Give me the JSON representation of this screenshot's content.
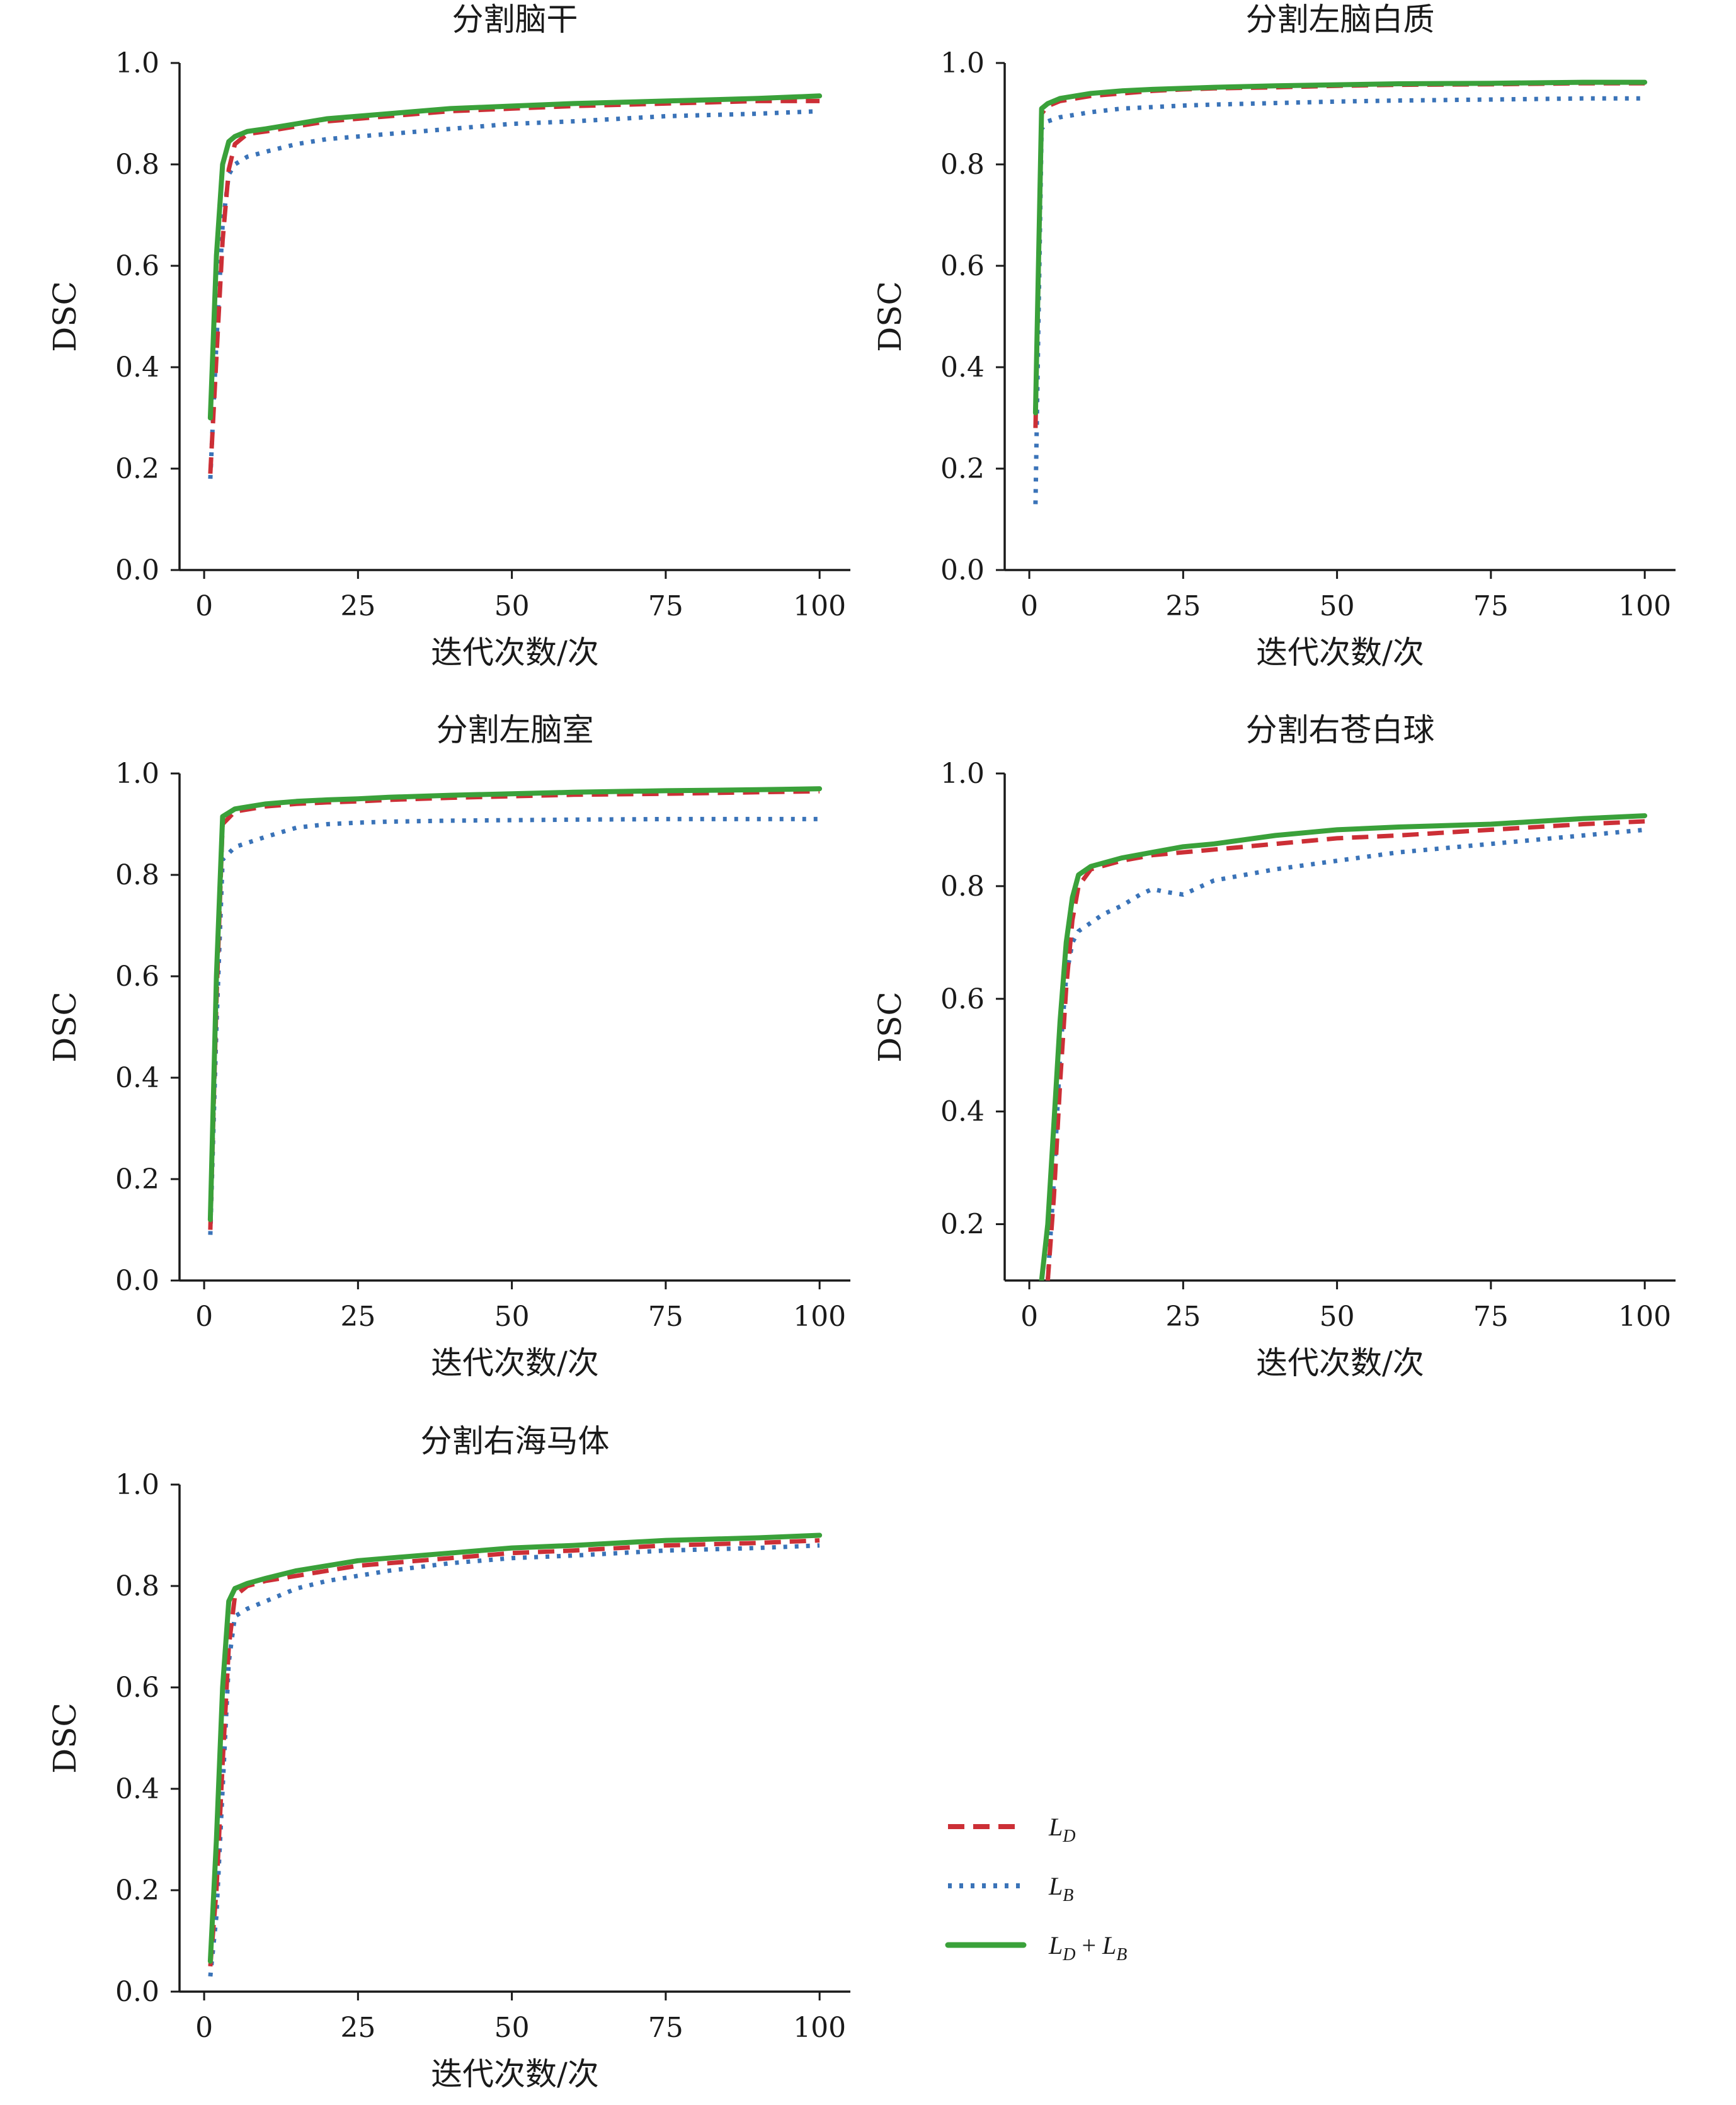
{
  "legend": {
    "entries": [
      {
        "series": "LD",
        "main": "L",
        "sub": "D",
        "color": "#cc2f36",
        "style": "dashed"
      },
      {
        "series": "LB",
        "main": "L",
        "sub": "B",
        "color": "#3a73b8",
        "style": "dotted"
      },
      {
        "series": "LD+LB",
        "main": "L",
        "sub": "D",
        "plus": " + ",
        "main2": "L",
        "sub2": "B",
        "color": "#3aa13a",
        "style": "solid"
      }
    ]
  },
  "chart_data": [
    {
      "type": "line",
      "title": "分割脑干",
      "xlabel": "迭代次数/次",
      "ylabel": "DSC",
      "xlim": [
        -4,
        105
      ],
      "ylim": [
        0.0,
        1.0
      ],
      "xticks": [
        0,
        25,
        50,
        75,
        100
      ],
      "yticks": [
        0.0,
        0.2,
        0.4,
        0.6,
        0.8,
        1.0
      ],
      "series": [
        {
          "name": "LD",
          "x": [
            1,
            2,
            3,
            4,
            5,
            7,
            10,
            15,
            20,
            25,
            30,
            40,
            50,
            60,
            75,
            90,
            100
          ],
          "y": [
            0.19,
            0.42,
            0.65,
            0.79,
            0.84,
            0.86,
            0.865,
            0.875,
            0.885,
            0.89,
            0.895,
            0.905,
            0.91,
            0.915,
            0.92,
            0.925,
            0.925
          ]
        },
        {
          "name": "LB",
          "x": [
            1,
            2,
            3,
            4,
            5,
            7,
            10,
            15,
            20,
            25,
            30,
            40,
            50,
            60,
            75,
            90,
            100
          ],
          "y": [
            0.18,
            0.45,
            0.68,
            0.78,
            0.8,
            0.815,
            0.825,
            0.84,
            0.85,
            0.855,
            0.86,
            0.87,
            0.88,
            0.885,
            0.895,
            0.9,
            0.905
          ]
        },
        {
          "name": "LD+LB",
          "x": [
            1,
            2,
            3,
            4,
            5,
            7,
            10,
            15,
            20,
            25,
            30,
            40,
            50,
            60,
            75,
            90,
            100
          ],
          "y": [
            0.3,
            0.62,
            0.8,
            0.845,
            0.855,
            0.865,
            0.87,
            0.88,
            0.89,
            0.895,
            0.9,
            0.91,
            0.915,
            0.92,
            0.925,
            0.93,
            0.935
          ]
        }
      ]
    },
    {
      "type": "line",
      "title": "分割左脑白质",
      "xlabel": "迭代次数/次",
      "ylabel": "DSC",
      "xlim": [
        -4,
        105
      ],
      "ylim": [
        0.0,
        1.0
      ],
      "xticks": [
        0,
        25,
        50,
        75,
        100
      ],
      "yticks": [
        0.0,
        0.2,
        0.4,
        0.6,
        0.8,
        1.0
      ],
      "series": [
        {
          "name": "LD",
          "x": [
            1,
            2,
            3,
            5,
            10,
            15,
            20,
            25,
            30,
            40,
            50,
            60,
            75,
            90,
            100
          ],
          "y": [
            0.28,
            0.9,
            0.915,
            0.925,
            0.935,
            0.94,
            0.945,
            0.948,
            0.95,
            0.952,
            0.955,
            0.957,
            0.958,
            0.96,
            0.96
          ]
        },
        {
          "name": "LB",
          "x": [
            1,
            2,
            3,
            5,
            10,
            15,
            20,
            25,
            30,
            40,
            50,
            60,
            75,
            90,
            100
          ],
          "y": [
            0.13,
            0.87,
            0.885,
            0.893,
            0.903,
            0.91,
            0.913,
            0.916,
            0.918,
            0.921,
            0.924,
            0.926,
            0.928,
            0.93,
            0.93
          ]
        },
        {
          "name": "LD+LB",
          "x": [
            1,
            2,
            3,
            5,
            10,
            15,
            20,
            25,
            30,
            40,
            50,
            60,
            75,
            90,
            100
          ],
          "y": [
            0.31,
            0.91,
            0.92,
            0.93,
            0.94,
            0.945,
            0.948,
            0.95,
            0.952,
            0.955,
            0.957,
            0.959,
            0.96,
            0.962,
            0.962
          ]
        }
      ]
    },
    {
      "type": "line",
      "title": "分割左脑室",
      "xlabel": "迭代次数/次",
      "ylabel": "DSC",
      "xlim": [
        -4,
        105
      ],
      "ylim": [
        0.0,
        1.0
      ],
      "xticks": [
        0,
        25,
        50,
        75,
        100
      ],
      "yticks": [
        0.0,
        0.2,
        0.4,
        0.6,
        0.8,
        1.0
      ],
      "series": [
        {
          "name": "LD",
          "x": [
            1,
            2,
            3,
            5,
            10,
            15,
            20,
            25,
            30,
            40,
            50,
            60,
            75,
            90,
            100
          ],
          "y": [
            0.1,
            0.55,
            0.9,
            0.925,
            0.935,
            0.94,
            0.943,
            0.945,
            0.948,
            0.952,
            0.955,
            0.958,
            0.96,
            0.963,
            0.965
          ]
        },
        {
          "name": "LB",
          "x": [
            1,
            2,
            3,
            5,
            10,
            15,
            20,
            25,
            30,
            40,
            50,
            60,
            75,
            90,
            100
          ],
          "y": [
            0.09,
            0.5,
            0.83,
            0.855,
            0.875,
            0.893,
            0.9,
            0.903,
            0.905,
            0.907,
            0.908,
            0.909,
            0.91,
            0.91,
            0.91
          ]
        },
        {
          "name": "LD+LB",
          "x": [
            1,
            2,
            3,
            5,
            10,
            15,
            20,
            25,
            30,
            40,
            50,
            60,
            75,
            90,
            100
          ],
          "y": [
            0.12,
            0.6,
            0.915,
            0.93,
            0.94,
            0.945,
            0.948,
            0.95,
            0.953,
            0.957,
            0.96,
            0.963,
            0.966,
            0.968,
            0.97
          ]
        }
      ]
    },
    {
      "type": "line",
      "title": "分割右苍白球",
      "xlabel": "迭代次数/次",
      "ylabel": "DSC",
      "xlim": [
        -4,
        105
      ],
      "ylim": [
        0.1,
        1.0
      ],
      "xticks": [
        0,
        25,
        50,
        75,
        100
      ],
      "yticks": [
        0.2,
        0.4,
        0.6,
        0.8,
        1.0
      ],
      "series": [
        {
          "name": "LD",
          "x": [
            3,
            4,
            5,
            6,
            7,
            8,
            10,
            15,
            20,
            25,
            30,
            40,
            50,
            60,
            75,
            90,
            100
          ],
          "y": [
            0.1,
            0.25,
            0.45,
            0.62,
            0.74,
            0.8,
            0.83,
            0.845,
            0.855,
            0.86,
            0.865,
            0.875,
            0.885,
            0.89,
            0.9,
            0.91,
            0.915
          ]
        },
        {
          "name": "LB",
          "x": [
            3,
            4,
            5,
            6,
            7,
            8,
            10,
            12,
            15,
            18,
            20,
            22,
            25,
            30,
            40,
            50,
            60,
            75,
            90,
            100
          ],
          "y": [
            0.1,
            0.28,
            0.5,
            0.64,
            0.7,
            0.72,
            0.735,
            0.75,
            0.765,
            0.785,
            0.795,
            0.79,
            0.785,
            0.81,
            0.83,
            0.845,
            0.86,
            0.875,
            0.89,
            0.9
          ]
        },
        {
          "name": "LD+LB",
          "x": [
            2,
            3,
            4,
            5,
            6,
            7,
            8,
            10,
            15,
            20,
            25,
            30,
            40,
            50,
            60,
            75,
            90,
            100
          ],
          "y": [
            0.1,
            0.2,
            0.38,
            0.56,
            0.7,
            0.78,
            0.82,
            0.835,
            0.85,
            0.86,
            0.87,
            0.875,
            0.89,
            0.9,
            0.905,
            0.91,
            0.92,
            0.925
          ]
        }
      ]
    },
    {
      "type": "line",
      "title": "分割右海马体",
      "xlabel": "迭代次数/次",
      "ylabel": "DSC",
      "xlim": [
        -4,
        105
      ],
      "ylim": [
        0.0,
        1.0
      ],
      "xticks": [
        0,
        25,
        50,
        75,
        100
      ],
      "yticks": [
        0.0,
        0.2,
        0.4,
        0.6,
        0.8,
        1.0
      ],
      "series": [
        {
          "name": "LD",
          "x": [
            1,
            2,
            3,
            4,
            5,
            7,
            10,
            15,
            20,
            25,
            30,
            40,
            50,
            60,
            75,
            90,
            100
          ],
          "y": [
            0.05,
            0.2,
            0.45,
            0.68,
            0.78,
            0.8,
            0.81,
            0.82,
            0.83,
            0.84,
            0.845,
            0.855,
            0.865,
            0.87,
            0.88,
            0.885,
            0.89
          ]
        },
        {
          "name": "LB",
          "x": [
            1,
            2,
            3,
            4,
            5,
            7,
            10,
            15,
            20,
            25,
            30,
            40,
            50,
            60,
            75,
            90,
            100
          ],
          "y": [
            0.03,
            0.15,
            0.4,
            0.65,
            0.74,
            0.755,
            0.77,
            0.795,
            0.81,
            0.82,
            0.83,
            0.845,
            0.855,
            0.86,
            0.87,
            0.875,
            0.88
          ]
        },
        {
          "name": "LD+LB",
          "x": [
            1,
            2,
            3,
            4,
            5,
            7,
            10,
            15,
            20,
            25,
            30,
            40,
            50,
            60,
            75,
            90,
            100
          ],
          "y": [
            0.06,
            0.3,
            0.6,
            0.77,
            0.795,
            0.805,
            0.815,
            0.83,
            0.84,
            0.85,
            0.855,
            0.865,
            0.875,
            0.88,
            0.89,
            0.895,
            0.9
          ]
        }
      ]
    }
  ]
}
